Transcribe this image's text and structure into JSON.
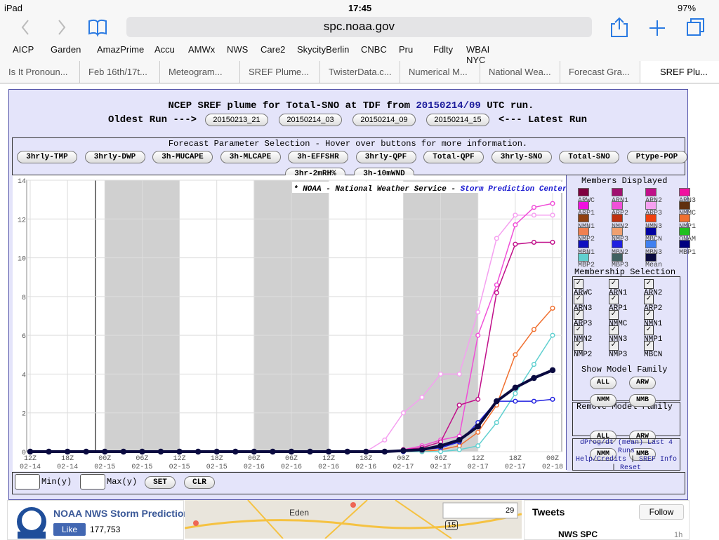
{
  "status": {
    "device": "iPad",
    "time": "17:45",
    "battery": "97%"
  },
  "url": "spc.noaa.gov",
  "bookmarks": [
    "AICP",
    "Garden",
    "AmazPrime",
    "Accu",
    "AMWx",
    "NWS",
    "Care2",
    "SkycityBerlin",
    "CNBC",
    "Pru",
    "Fdlty",
    "WBAI NYC"
  ],
  "tabs": [
    "Is It Pronoun...",
    "Feb 16th/17t...",
    "Meteogram...",
    "SREF Plume...",
    "TwisterData.c...",
    "Numerical M...",
    "National Wea...",
    "Forecast Gra...",
    "SREF Plu..."
  ],
  "header": {
    "title_prefix": "NCEP SREF plume for Total-SNO at TDF from",
    "run": "20150214/09",
    "title_suffix": "UTC run.",
    "oldest": "Oldest Run --->",
    "latest": "<--- Latest Run",
    "runs": [
      "20150213_21",
      "20150214_03",
      "20150214_09",
      "20150214_15"
    ]
  },
  "param_caption": "Forecast Parameter Selection - Hover over buttons for more information.",
  "params": [
    "3hrly-TMP",
    "3hrly-DWP",
    "3h-MUCAPE",
    "3h-MLCAPE",
    "3h-EFFSHR",
    "3hrly-QPF",
    "Total-QPF",
    "3hrly-SNO",
    "Total-SNO",
    "Ptype-POP",
    "3hr-2mRH%",
    "3h-10mWND"
  ],
  "chart_data": {
    "type": "line",
    "annotation": "* NOAA - National Weather Service -",
    "annotation_link": "Storm Prediction Center",
    "annotation_end": "*",
    "categories": [
      [
        "12Z",
        "02-14"
      ],
      null,
      [
        "18Z",
        "02-14"
      ],
      null,
      [
        "00Z",
        "02-15"
      ],
      null,
      [
        "06Z",
        "02-15"
      ],
      null,
      [
        "12Z",
        "02-15"
      ],
      null,
      [
        "18Z",
        "02-15"
      ],
      null,
      [
        "00Z",
        "02-16"
      ],
      null,
      [
        "06Z",
        "02-16"
      ],
      null,
      [
        "12Z",
        "02-16"
      ],
      null,
      [
        "18Z",
        "02-16"
      ],
      null,
      [
        "00Z",
        "02-17"
      ],
      null,
      [
        "06Z",
        "02-17"
      ],
      null,
      [
        "12Z",
        "02-17"
      ],
      null,
      [
        "18Z",
        "02-17"
      ],
      null,
      [
        "00Z",
        "02-18"
      ]
    ],
    "series": [
      {
        "name": "ARP3",
        "color": "#f5a0f0",
        "values": [
          0,
          0,
          0,
          0,
          0,
          0,
          0,
          0,
          0,
          0,
          0,
          0,
          0,
          0,
          0,
          0,
          0,
          0,
          0,
          0.6,
          2.0,
          2.8,
          4.0,
          4.0,
          7.2,
          11.0,
          12.2,
          12.2,
          12.2
        ]
      },
      {
        "name": "ARP2",
        "color": "#f050d8",
        "values": [
          0,
          0,
          0,
          0,
          0,
          0,
          0,
          0,
          0,
          0,
          0,
          0,
          0,
          0,
          0,
          0,
          0,
          0,
          0,
          0,
          0.1,
          0.3,
          0.6,
          0.8,
          6.0,
          8.6,
          11.7,
          12.6,
          12.8
        ]
      },
      {
        "name": "ARN2",
        "color": "#c0108a",
        "values": [
          0,
          0,
          0,
          0,
          0,
          0,
          0,
          0,
          0,
          0,
          0,
          0,
          0,
          0,
          0,
          0,
          0,
          0,
          0,
          0,
          0.1,
          0.2,
          0.5,
          2.4,
          2.7,
          8.2,
          10.7,
          10.8,
          10.8
        ]
      },
      {
        "name": "NMP1",
        "color": "#f07030",
        "values": [
          0,
          0,
          0,
          0,
          0,
          0,
          0,
          0,
          0,
          0,
          0,
          0,
          0,
          0,
          0,
          0,
          0,
          0,
          0,
          0,
          0,
          0,
          0.1,
          0.3,
          1.0,
          2.4,
          5.0,
          6.3,
          7.4
        ]
      },
      {
        "name": "MBP2",
        "color": "#60d0d0",
        "values": [
          0,
          0,
          0,
          0,
          0,
          0,
          0,
          0,
          0,
          0,
          0,
          0,
          0,
          0,
          0,
          0,
          0,
          0,
          0,
          0,
          0,
          0,
          0,
          0.1,
          0.3,
          1.5,
          3.0,
          4.5,
          6.0
        ]
      },
      {
        "name": "MBN2",
        "color": "#2020e0",
        "values": [
          0,
          0,
          0,
          0,
          0,
          0,
          0,
          0,
          0,
          0,
          0,
          0,
          0,
          0,
          0,
          0,
          0,
          0,
          0,
          0,
          0,
          0.1,
          0.2,
          0.5,
          1.5,
          2.6,
          2.6,
          2.6,
          2.7
        ]
      },
      {
        "name": "Mean",
        "color": "#0a0a40",
        "values": [
          0,
          0,
          0,
          0,
          0,
          0,
          0,
          0,
          0,
          0,
          0,
          0,
          0,
          0,
          0,
          0,
          0,
          0,
          0,
          0,
          0.05,
          0.1,
          0.3,
          0.6,
          1.3,
          2.6,
          3.3,
          3.8,
          4.2
        ]
      }
    ],
    "ylim": [
      0,
      14
    ],
    "yticks": [
      0,
      2,
      4,
      6,
      8,
      10,
      12,
      14
    ],
    "grid": true
  },
  "members_title": "Members Displayed",
  "members": [
    {
      "name": "ARWC",
      "color": "#800040"
    },
    {
      "name": "ARN1",
      "color": "#a01070"
    },
    {
      "name": "ARN2",
      "color": "#c0108a"
    },
    {
      "name": "ARN3",
      "color": "#f010a0"
    },
    {
      "name": "ARP1",
      "color": "#f010e0"
    },
    {
      "name": "ARP2",
      "color": "#f050d8"
    },
    {
      "name": "ARP3",
      "color": "#f5a0f0"
    },
    {
      "name": "NMMC",
      "color": "#603010"
    },
    {
      "name": "NMN1",
      "color": "#904010"
    },
    {
      "name": "NMN2",
      "color": "#c03010"
    },
    {
      "name": "NMN3",
      "color": "#f04010"
    },
    {
      "name": "NMP1",
      "color": "#f07030"
    },
    {
      "name": "NMP2",
      "color": "#f08050"
    },
    {
      "name": "NMP3",
      "color": "#f0a070"
    },
    {
      "name": "MBCN",
      "color": "#0000a0"
    },
    {
      "name": "ONAM",
      "color": "#20c020"
    },
    {
      "name": "MBN1",
      "color": "#1010c0"
    },
    {
      "name": "MBN2",
      "color": "#2020e0"
    },
    {
      "name": "MBN3",
      "color": "#4080f0"
    },
    {
      "name": "MBP1",
      "color": "#000080"
    },
    {
      "name": "MBP2",
      "color": "#60d0d0"
    },
    {
      "name": "MBP3",
      "color": "#406060"
    },
    {
      "name": "Mean",
      "color": "#0a0a40"
    }
  ],
  "membership_title": "Membership Selection",
  "membership": [
    "ARWC",
    "ARN1",
    "ARN2",
    "ARN3",
    "ARP1",
    "ARP2",
    "ARP3",
    "NMMC",
    "NMN1",
    "NMN2",
    "NMN3",
    "NMP1",
    "NMP2",
    "NMP3",
    "MBCN"
  ],
  "show_family_title": "Show Model Family",
  "remove_family_title": "Remove Model Family",
  "families": [
    "ALL",
    "ARW",
    "NMM",
    "NMB"
  ],
  "links": {
    "dprog": "dProg/dt (mean) Last 4 Runs",
    "help": "Help/Credits",
    "info": "SREF Info",
    "reset": "Reset"
  },
  "controls": {
    "min_label": "Min(y)",
    "max_label": "Max(y)",
    "set": "SET",
    "clr": "CLR"
  },
  "footer": {
    "fb_title": "NOAA NWS Storm Prediction",
    "like": "Like",
    "likes": "177,753",
    "town": "Eden",
    "route": "15",
    "zoom": "29",
    "tweets": "Tweets",
    "follow": "Follow",
    "tweeter": "NWS SPC",
    "tweet_time": "1h"
  }
}
